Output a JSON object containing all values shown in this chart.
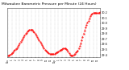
{
  "title": "Milwaukee Barometric Pressure per Minute (24 Hours)",
  "title_fontsize": 3.5,
  "line_color": "#ff0000",
  "bg_color": "#ffffff",
  "grid_color": "#bbbbbb",
  "ylim": [
    29.35,
    30.28
  ],
  "yticks": [
    29.4,
    29.5,
    29.6,
    29.7,
    29.8,
    29.9,
    30.0,
    30.1,
    30.2
  ],
  "ytick_labels": [
    "29.4",
    "29.5",
    "29.6",
    "29.7",
    "29.8",
    "29.9",
    "30.0",
    "30.1",
    "30.2"
  ],
  "x_values": [
    0,
    1,
    2,
    3,
    4,
    5,
    6,
    7,
    8,
    9,
    10,
    11,
    12,
    13,
    14,
    15,
    16,
    17,
    18,
    19,
    20,
    21,
    22,
    23,
    24,
    25,
    26,
    27,
    28,
    29,
    30,
    31,
    32,
    33,
    34,
    35,
    36,
    37,
    38,
    39,
    40,
    41,
    42,
    43,
    44,
    45,
    46,
    47,
    48,
    49,
    50,
    51,
    52,
    53,
    54,
    55,
    56,
    57,
    58,
    59,
    60,
    61,
    62,
    63,
    64,
    65,
    66,
    67,
    68,
    69,
    70,
    71,
    72,
    73,
    74,
    75,
    76,
    77,
    78,
    79,
    80,
    81,
    82,
    83,
    84,
    85,
    86,
    87,
    88,
    89,
    90,
    91,
    92,
    93,
    94,
    95
  ],
  "y_values": [
    29.38,
    29.39,
    29.4,
    29.41,
    29.43,
    29.45,
    29.47,
    29.49,
    29.51,
    29.53,
    29.56,
    29.59,
    29.62,
    29.65,
    29.68,
    29.71,
    29.74,
    29.77,
    29.8,
    29.82,
    29.84,
    29.86,
    29.87,
    29.88,
    29.88,
    29.87,
    29.85,
    29.83,
    29.8,
    29.77,
    29.74,
    29.71,
    29.68,
    29.65,
    29.62,
    29.59,
    29.56,
    29.53,
    29.5,
    29.48,
    29.46,
    29.44,
    29.43,
    29.42,
    29.41,
    29.41,
    29.41,
    29.41,
    29.42,
    29.43,
    29.44,
    29.45,
    29.46,
    29.48,
    29.49,
    29.5,
    29.51,
    29.52,
    29.52,
    29.52,
    29.51,
    29.49,
    29.46,
    29.43,
    29.4,
    29.39,
    29.38,
    29.39,
    29.4,
    29.42,
    29.44,
    29.46,
    29.48,
    29.52,
    29.57,
    29.62,
    29.68,
    29.74,
    29.8,
    29.86,
    29.92,
    29.97,
    30.01,
    30.05,
    30.09,
    30.13,
    30.16,
    30.18,
    30.19,
    30.2,
    30.2,
    30.19,
    30.19,
    30.19,
    30.2,
    30.21
  ],
  "xtick_positions": [
    0,
    4,
    8,
    12,
    16,
    20,
    24,
    28,
    32,
    36,
    40,
    44,
    48,
    52,
    56,
    60,
    64,
    68,
    72,
    76,
    80,
    84,
    88,
    92
  ],
  "xtick_labels": [
    "12a",
    "1",
    "2",
    "3",
    "4",
    "5",
    "6",
    "7",
    "8",
    "9",
    "10",
    "11",
    "12p",
    "1",
    "2",
    "3",
    "4",
    "5",
    "6",
    "7",
    "8",
    "9",
    "10",
    "11"
  ],
  "vgrid_positions": [
    0,
    4,
    8,
    12,
    16,
    20,
    24,
    28,
    32,
    36,
    40,
    44,
    48,
    52,
    56,
    60,
    64,
    68,
    72,
    76,
    80,
    84,
    88,
    92
  ]
}
